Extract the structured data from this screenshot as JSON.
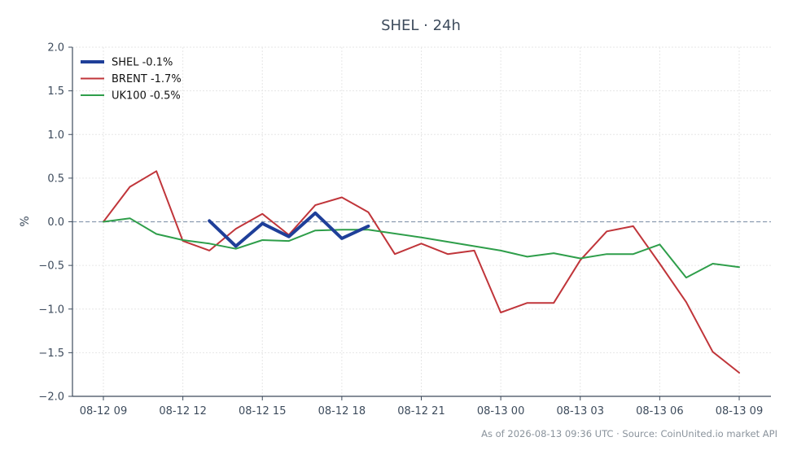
{
  "chart_data": {
    "type": "line",
    "title": "SHEL · 24h",
    "xlabel": "",
    "ylabel": "%",
    "ylim": [
      -2.0,
      2.0
    ],
    "yticks": [
      2.0,
      1.5,
      1.0,
      0.5,
      0.0,
      -0.5,
      -1.0,
      -1.5,
      -2.0
    ],
    "ytick_labels": [
      "2.0",
      "1.5",
      "1.0",
      "0.5",
      "0.0",
      "−0.5",
      "−1.0",
      "−1.5",
      "−2.0"
    ],
    "xlim": [
      0,
      24
    ],
    "xticks": [
      0,
      3,
      6,
      9,
      12,
      15,
      18,
      21,
      24
    ],
    "xtick_labels": [
      "08-12 09",
      "08-12 12",
      "08-12 15",
      "08-12 18",
      "08-12 21",
      "08-13 00",
      "08-13 03",
      "08-13 06",
      "08-13 09"
    ],
    "grid": true,
    "zero_line": true,
    "legend_position": "top-left",
    "series": [
      {
        "name": "SHEL -0.1%",
        "color": "#1f3f99",
        "width": 4,
        "x": [
          4,
          5,
          6,
          7,
          8,
          9,
          10
        ],
        "y": [
          0.01,
          -0.28,
          -0.02,
          -0.17,
          0.1,
          -0.19,
          -0.05
        ]
      },
      {
        "name": "BRENT -1.7%",
        "color": "#c0353a",
        "width": 2,
        "x": [
          0,
          1,
          2,
          3,
          4,
          5,
          6,
          7,
          8,
          9,
          10,
          11,
          12,
          13,
          14,
          15,
          16,
          17,
          18,
          19,
          20,
          21,
          22,
          23,
          24
        ],
        "y": [
          0.0,
          0.4,
          0.58,
          -0.22,
          -0.33,
          -0.08,
          0.09,
          -0.15,
          0.19,
          0.28,
          0.11,
          -0.37,
          -0.25,
          -0.37,
          -0.33,
          -1.04,
          -0.93,
          -0.93,
          -0.44,
          -0.11,
          -0.05,
          -0.48,
          -0.92,
          -1.49,
          -1.73
        ]
      },
      {
        "name": "UK100 -0.5%",
        "color": "#2e9e4a",
        "width": 2,
        "x": [
          0,
          1,
          2,
          3,
          4,
          5,
          6,
          7,
          8,
          9,
          10,
          12,
          15,
          16,
          17,
          18,
          19,
          20,
          21,
          22,
          23,
          24
        ],
        "y": [
          0.0,
          0.04,
          -0.14,
          -0.21,
          -0.25,
          -0.31,
          -0.21,
          -0.22,
          -0.1,
          -0.09,
          -0.09,
          -0.18,
          -0.33,
          -0.4,
          -0.36,
          -0.42,
          -0.37,
          -0.37,
          -0.26,
          -0.64,
          -0.48,
          -0.52
        ]
      }
    ]
  },
  "footer": {
    "text": "As of 2026-08-13 09:36 UTC · Source: CoinUnited.io market API"
  },
  "colors": {
    "axis": "#3d4b5c",
    "grid": "#e6e6e6",
    "zero_line": "#8a9bb0"
  }
}
